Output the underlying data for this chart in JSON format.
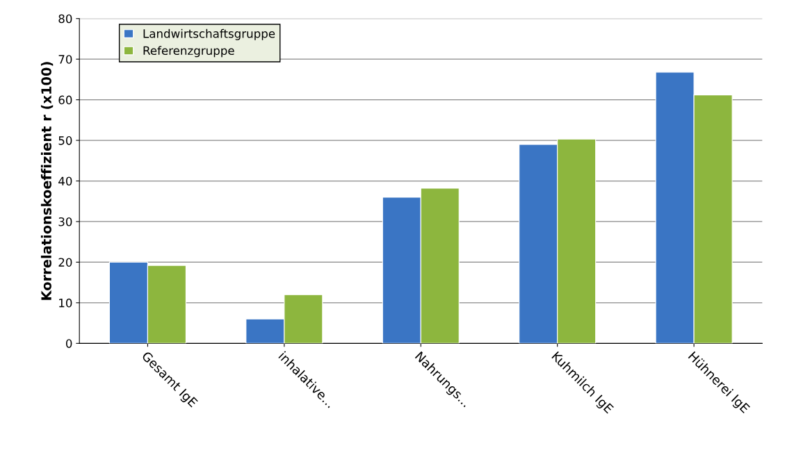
{
  "chart_data": {
    "type": "bar",
    "ylabel": "Korrelationskoeffizient r (x100)",
    "categories": [
      "Gesamt IgE",
      "inhalative...",
      "Nahrungs...",
      "Kuhmilch IgE",
      "Hühnerei IgE"
    ],
    "series": [
      {
        "name": "Landwirtschaftsgruppe",
        "color": "#3a75c4",
        "values": [
          20,
          6,
          36,
          49,
          66.8
        ]
      },
      {
        "name": "Referenzgruppe",
        "color": "#8db63e",
        "values": [
          19.2,
          12,
          38.2,
          50.3,
          61.2
        ]
      }
    ],
    "ylim": [
      0,
      80
    ],
    "yticks": [
      0,
      10,
      20,
      30,
      40,
      50,
      60,
      70,
      80
    ],
    "grid": "y",
    "legend": "top left"
  }
}
